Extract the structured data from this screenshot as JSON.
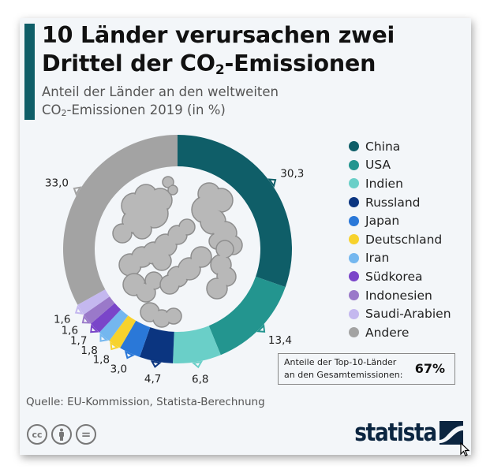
{
  "header": {
    "title_line1": "10 Länder verursachen zwei",
    "title_line2_pre": "Drittel der CO",
    "title_line2_sub": "2",
    "title_line2_post": "-Emissionen",
    "subtitle_line1": "Anteil der Länder an den weltweiten",
    "subtitle_line2_pre": "CO",
    "subtitle_line2_sub": "2",
    "subtitle_line2_post": "-Emissionen 2019 (in %)"
  },
  "chart_data": {
    "type": "pie",
    "variant": "donut",
    "title": "10 Länder verursachen zwei Drittel der CO2-Emissionen",
    "subtitle": "Anteil der Länder an den weltweiten CO2-Emissionen 2019 (in %)",
    "unit": "%",
    "slices": [
      {
        "name": "China",
        "value": 30.3,
        "label": "30,3",
        "color": "#0f5e68"
      },
      {
        "name": "USA",
        "value": 13.4,
        "label": "13,4",
        "color": "#23958f"
      },
      {
        "name": "Indien",
        "value": 6.8,
        "label": "6,8",
        "color": "#6acfc8"
      },
      {
        "name": "Russland",
        "value": 4.7,
        "label": "4,7",
        "color": "#0b3580"
      },
      {
        "name": "Japan",
        "value": 3.0,
        "label": "3,0",
        "color": "#2a78d8"
      },
      {
        "name": "Deutschland",
        "value": 1.8,
        "label": "1,8",
        "color": "#f7d22d"
      },
      {
        "name": "Iran",
        "value": 1.8,
        "label": "1,8",
        "color": "#74b7ef"
      },
      {
        "name": "Südkorea",
        "value": 1.7,
        "label": "1,7",
        "color": "#7a45c9"
      },
      {
        "name": "Indonesien",
        "value": 1.6,
        "label": "1,6",
        "color": "#9a79c9"
      },
      {
        "name": "Saudi-Arabien",
        "value": 1.6,
        "label": "1,6",
        "color": "#c4b8ef"
      },
      {
        "name": "Andere",
        "value": 33.0,
        "label": "33,0",
        "color": "#a3a3a3"
      }
    ],
    "legend_position": "right"
  },
  "summary": {
    "label_line1": "Anteile der Top-10-Länder",
    "label_line2": "an den Gesamtemissionen:",
    "value": "67%"
  },
  "footer": {
    "source": "Quelle: EU-Kommission, Statista-Berechnung",
    "license_icons": [
      "cc-icon",
      "by-icon",
      "nd-icon"
    ],
    "cc_text": "cc",
    "nd_text": "=",
    "logo_text": "statista"
  }
}
